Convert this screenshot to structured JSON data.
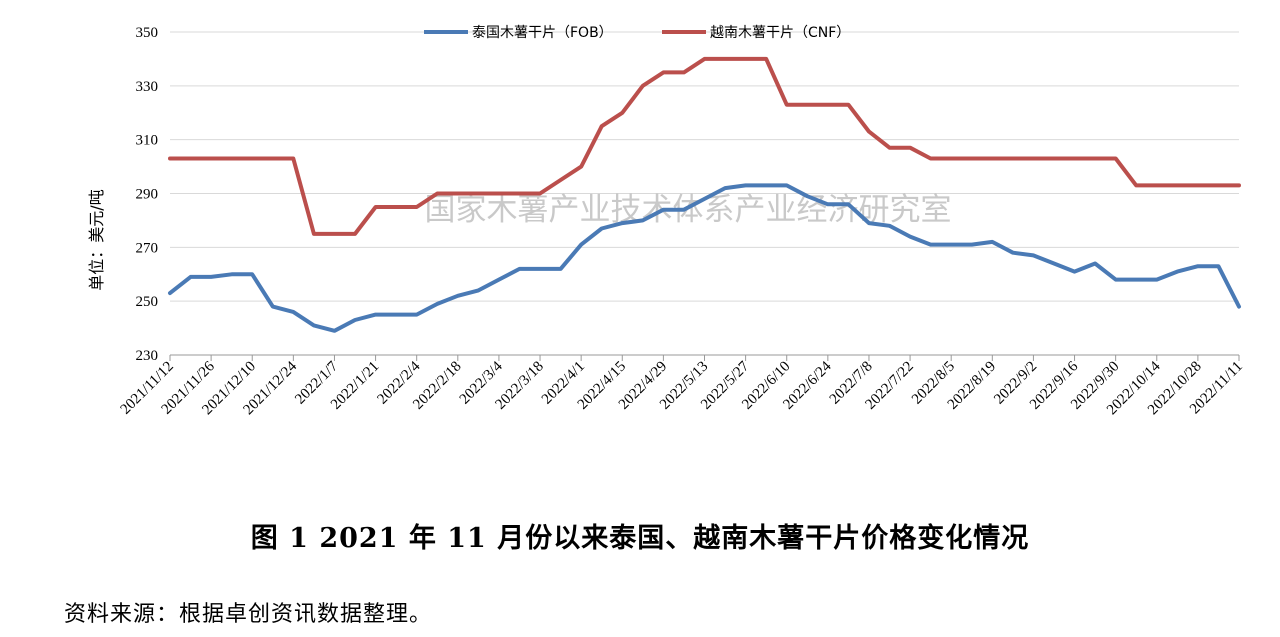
{
  "chart_data": {
    "type": "line",
    "ylabel": "单位：美元/吨",
    "ylim": [
      230,
      350
    ],
    "yticks": [
      230,
      250,
      270,
      290,
      310,
      330,
      350
    ],
    "grid": "horizontal",
    "legend_position": "top-center",
    "watermark": "国家木薯产业技术体系产业经济研究室",
    "x": [
      "2021/11/12",
      "2021/11/19",
      "2021/11/26",
      "2021/12/3",
      "2021/12/10",
      "2021/12/17",
      "2021/12/24",
      "2021/12/31",
      "2022/1/7",
      "2022/1/14",
      "2022/1/21",
      "2022/1/28",
      "2022/2/4",
      "2022/2/11",
      "2022/2/18",
      "2022/2/25",
      "2022/3/4",
      "2022/3/11",
      "2022/3/18",
      "2022/3/25",
      "2022/4/1",
      "2022/4/8",
      "2022/4/15",
      "2022/4/22",
      "2022/4/29",
      "2022/5/6",
      "2022/5/13",
      "2022/5/20",
      "2022/5/27",
      "2022/6/3",
      "2022/6/10",
      "2022/6/17",
      "2022/6/24",
      "2022/7/1",
      "2022/7/8",
      "2022/7/15",
      "2022/7/22",
      "2022/7/29",
      "2022/8/5",
      "2022/8/12",
      "2022/8/19",
      "2022/8/26",
      "2022/9/2",
      "2022/9/9",
      "2022/9/16",
      "2022/9/23",
      "2022/9/30",
      "2022/10/7",
      "2022/10/14",
      "2022/10/21",
      "2022/10/28",
      "2022/11/4",
      "2022/11/11"
    ],
    "xtick_labels": [
      "2021/11/12",
      "2021/11/26",
      "2021/12/10",
      "2021/12/24",
      "2022/1/7",
      "2022/1/21",
      "2022/2/4",
      "2022/2/18",
      "2022/3/4",
      "2022/3/18",
      "2022/4/1",
      "2022/4/15",
      "2022/4/29",
      "2022/5/13",
      "2022/5/27",
      "2022/6/10",
      "2022/6/24",
      "2022/7/8",
      "2022/7/22",
      "2022/8/5",
      "2022/8/19",
      "2022/9/2",
      "2022/9/16",
      "2022/9/30",
      "2022/10/14",
      "2022/10/28",
      "2022/11/11"
    ],
    "series": [
      {
        "name": "泰国木薯干片（FOB）",
        "color": "#4a7ab5",
        "values": [
          253,
          259,
          259,
          260,
          260,
          248,
          246,
          241,
          239,
          243,
          245,
          245,
          245,
          249,
          252,
          254,
          258,
          262,
          262,
          262,
          271,
          277,
          279,
          280,
          284,
          284,
          288,
          292,
          293,
          293,
          293,
          289,
          286,
          286,
          279,
          278,
          274,
          271,
          271,
          271,
          272,
          268,
          267,
          264,
          261,
          264,
          258,
          258,
          258,
          261,
          263,
          263,
          248
        ]
      },
      {
        "name": "越南木薯干片（CNF）",
        "color": "#bb4f4c",
        "values": [
          303,
          303,
          303,
          303,
          303,
          303,
          303,
          275,
          275,
          275,
          285,
          285,
          285,
          290,
          290,
          290,
          290,
          290,
          290,
          295,
          300,
          315,
          320,
          330,
          335,
          335,
          340,
          340,
          340,
          340,
          323,
          323,
          323,
          323,
          313,
          307,
          307,
          303,
          303,
          303,
          303,
          303,
          303,
          303,
          303,
          303,
          303,
          293,
          293,
          293,
          293,
          293,
          293
        ]
      }
    ]
  },
  "caption": "图 1    2021 年 11 月份以来泰国、越南木薯干片价格变化情况",
  "source": "资料来源：根据卓创资讯数据整理。"
}
